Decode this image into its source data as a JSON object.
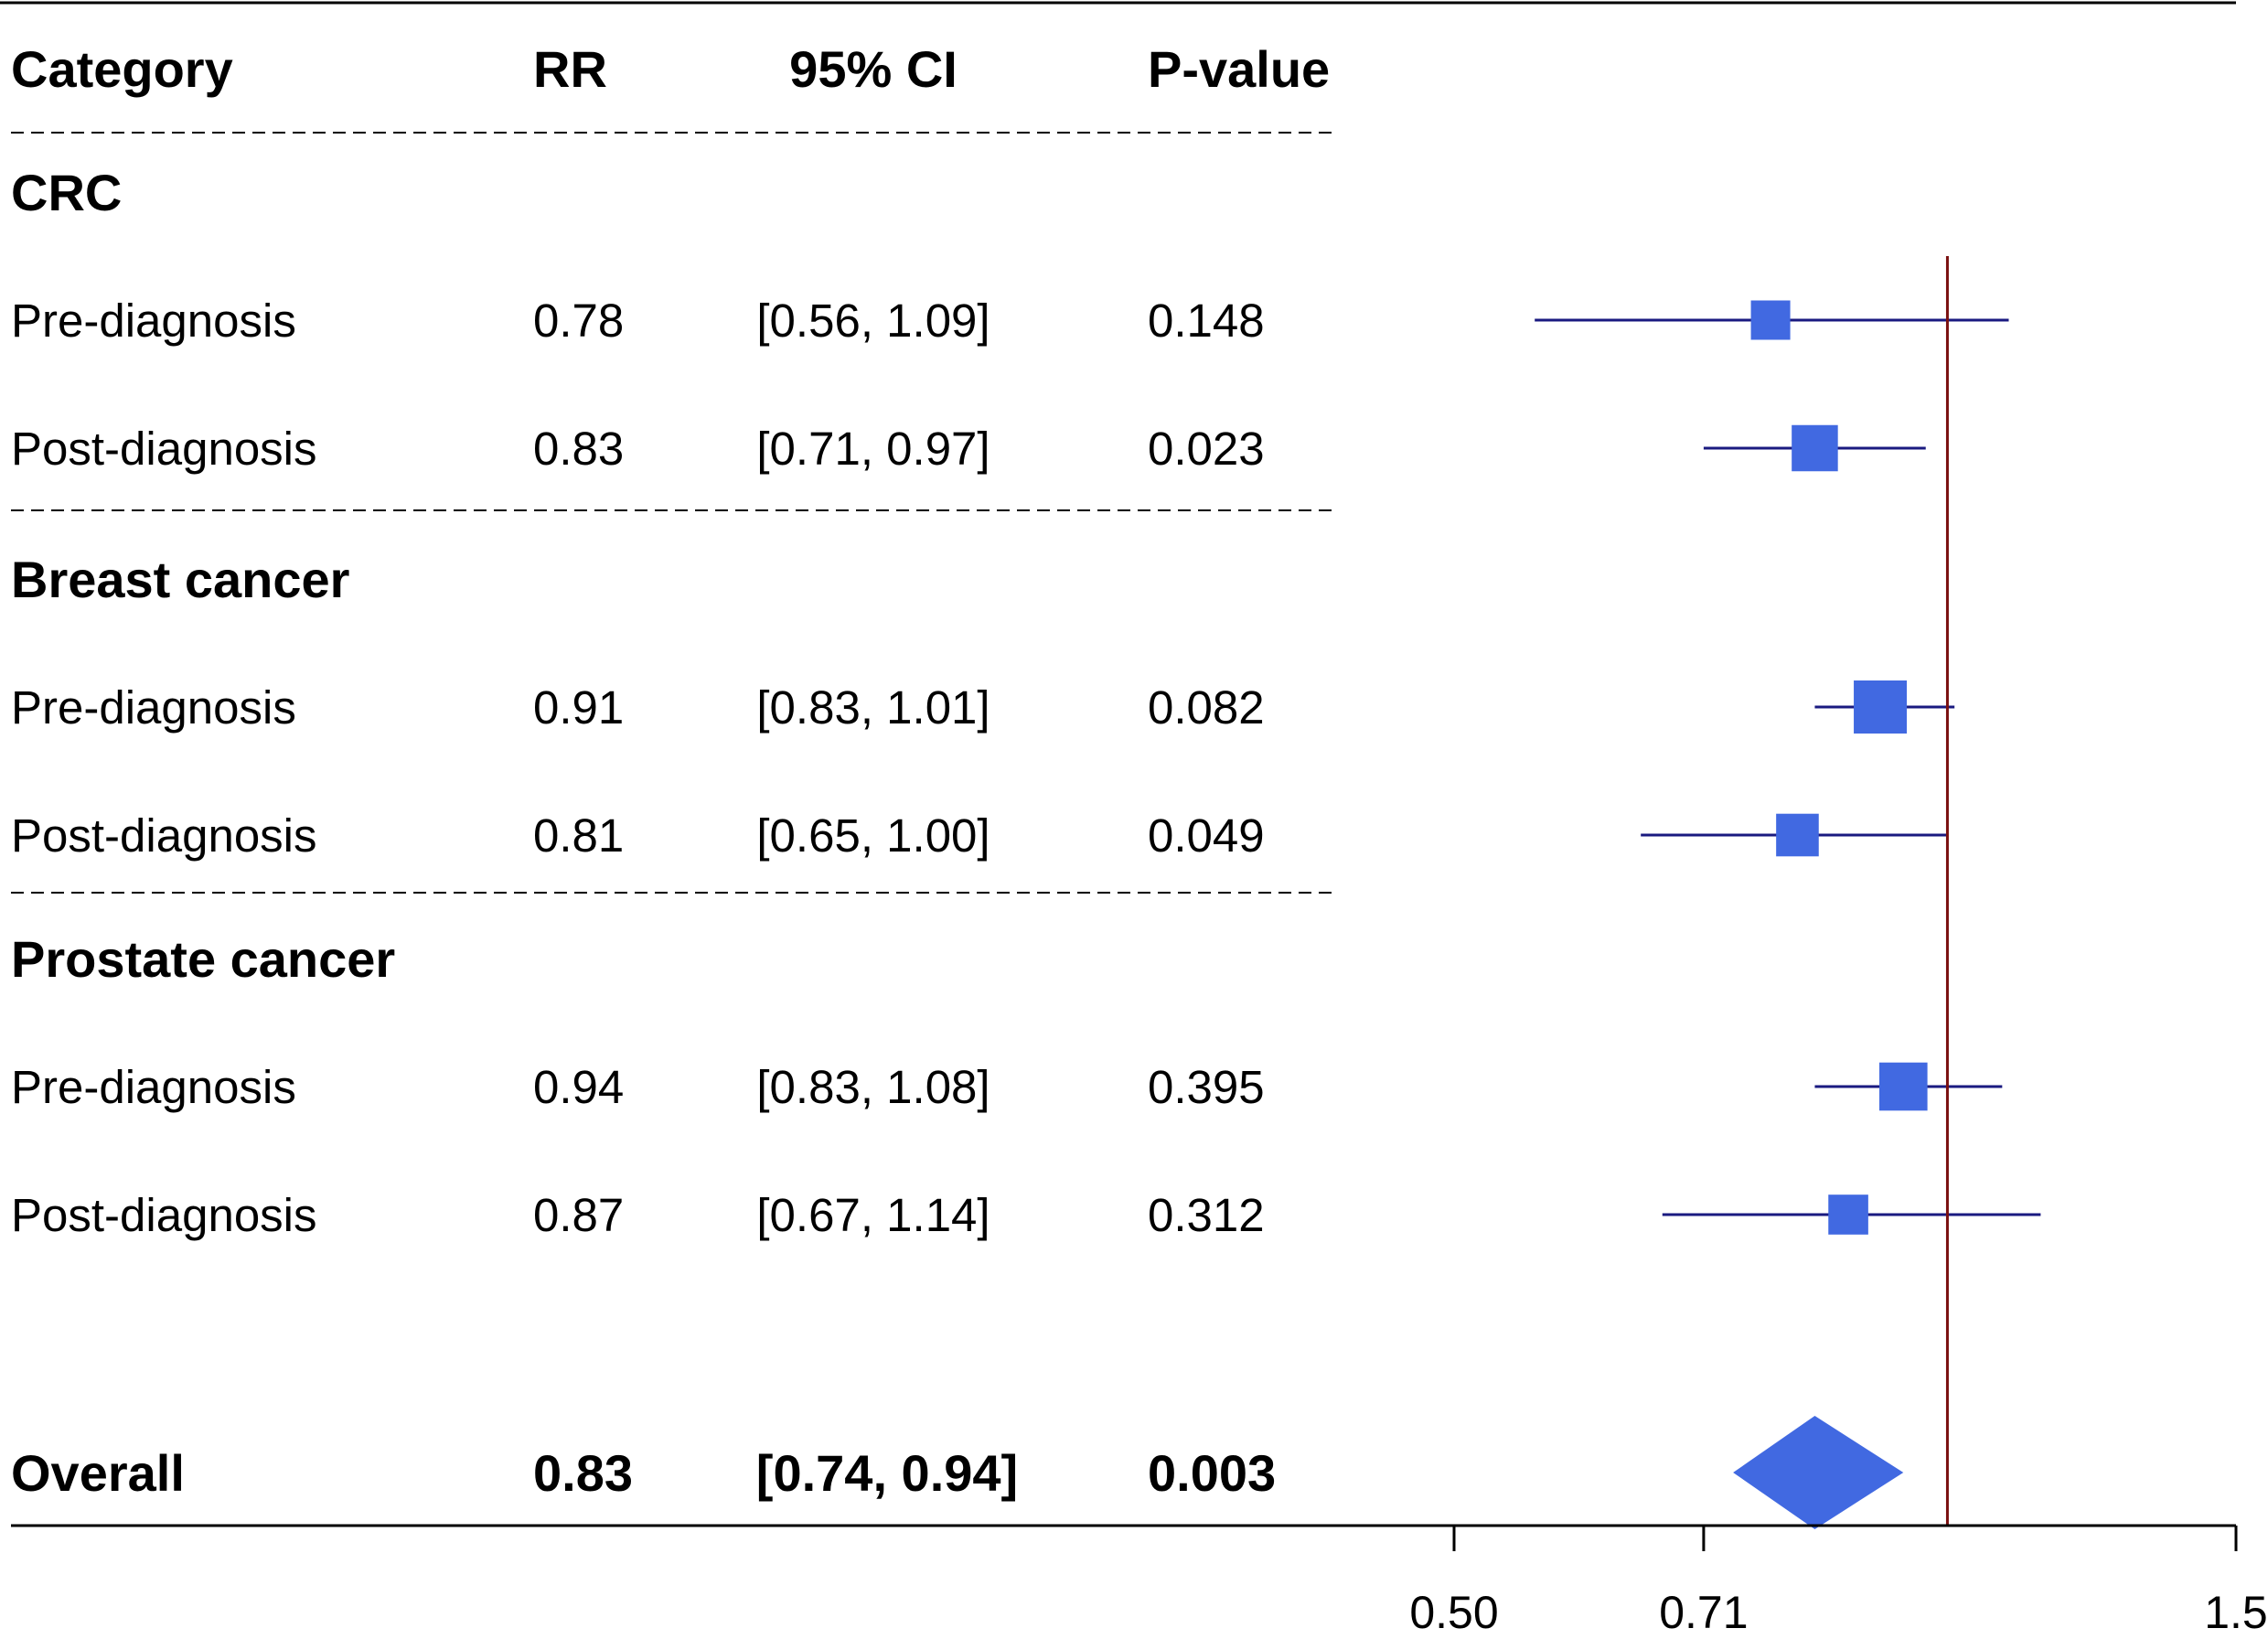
{
  "chart_data": {
    "type": "forest",
    "scale": "log",
    "reference_line": 1.0,
    "xlim": [
      0.5,
      1.5
    ],
    "x_ticks": [
      {
        "value": 0.5,
        "label": "0.50"
      },
      {
        "value": 0.71,
        "label": "0.71"
      },
      {
        "value": 1.5,
        "label": "1.5"
      }
    ],
    "columns": {
      "category": "Category",
      "rr": "RR",
      "ci": "95% CI",
      "p": "P-value"
    },
    "groups": [
      {
        "name": "CRC",
        "rows": [
          {
            "label": "Pre-diagnosis",
            "rr": 0.78,
            "lo": 0.56,
            "hi": 1.09,
            "rr_text": "0.78",
            "ci_text": "[0.56, 1.09]",
            "p_text": "0.148",
            "weight": 0.5
          },
          {
            "label": "Post-diagnosis",
            "rr": 0.83,
            "lo": 0.71,
            "hi": 0.97,
            "rr_text": "0.83",
            "ci_text": "[0.71, 0.97]",
            "p_text": "0.023",
            "weight": 0.75
          }
        ]
      },
      {
        "name": "Breast cancer",
        "rows": [
          {
            "label": "Pre-diagnosis",
            "rr": 0.91,
            "lo": 0.83,
            "hi": 1.01,
            "rr_text": "0.91",
            "ci_text": "[0.83, 1.01]",
            "p_text": "0.082",
            "weight": 1.0
          },
          {
            "label": "Post-diagnosis",
            "rr": 0.81,
            "lo": 0.65,
            "hi": 1.0,
            "rr_text": "0.81",
            "ci_text": "[0.65, 1.00]",
            "p_text": "0.049",
            "weight": 0.62
          }
        ]
      },
      {
        "name": "Prostate cancer",
        "rows": [
          {
            "label": "Pre-diagnosis",
            "rr": 0.94,
            "lo": 0.83,
            "hi": 1.08,
            "rr_text": "0.94",
            "ci_text": "[0.83, 1.08]",
            "p_text": "0.395",
            "weight": 0.82
          },
          {
            "label": "Post-diagnosis",
            "rr": 0.87,
            "lo": 0.67,
            "hi": 1.14,
            "rr_text": "0.87",
            "ci_text": "[0.67, 1.14]",
            "p_text": "0.312",
            "weight": 0.52
          }
        ]
      }
    ],
    "overall": {
      "label": "Overall",
      "rr": 0.83,
      "lo": 0.74,
      "hi": 0.94,
      "rr_text": "0.83",
      "ci_text": "[0.74, 0.94]",
      "p_text": "0.003"
    },
    "colors": {
      "marker": "#4169E1",
      "ci_line": "#1A1A80",
      "reference": "#7A1010",
      "axis": "#000000",
      "divider": "#000000"
    }
  }
}
